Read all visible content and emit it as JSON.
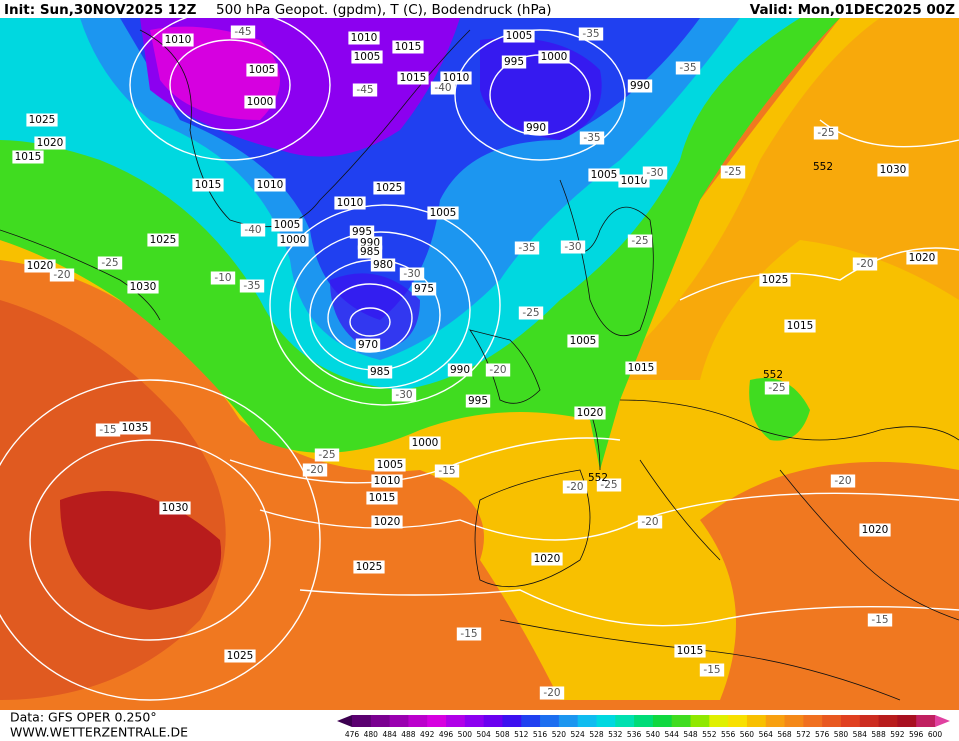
{
  "header": {
    "init": "Init: Sun,30NOV2025 12Z",
    "title": "500 hPa Geopot. (gpdm), T (C), Bodendruck (hPa)",
    "valid": "Valid: Mon,01DEC2025 00Z"
  },
  "footer": {
    "source": "Data: GFS OPER 0.250°",
    "site": "WWW.WETTERZENTRALE.DE"
  },
  "colorbar": {
    "labels": [
      476,
      480,
      484,
      488,
      492,
      496,
      500,
      504,
      508,
      512,
      516,
      520,
      524,
      528,
      532,
      536,
      540,
      544,
      548,
      552,
      556,
      560,
      564,
      568,
      572,
      576,
      580,
      584,
      588,
      592,
      596,
      600
    ],
    "colors": [
      "#3c0050",
      "#5a0070",
      "#7a0090",
      "#9a00b0",
      "#bb00cc",
      "#d600e0",
      "#b000e8",
      "#8c00f0",
      "#6a00f0",
      "#3c10f0",
      "#2040f0",
      "#1c6ef0",
      "#1c96f0",
      "#10bcf0",
      "#00d8e0",
      "#00e0b0",
      "#00dc78",
      "#10d840",
      "#40dc20",
      "#90e800",
      "#e0f000",
      "#f8e000",
      "#f8c000",
      "#f8a010",
      "#f48818",
      "#f07020",
      "#e85820",
      "#e04020",
      "#cc2c20",
      "#b81c1c",
      "#a81020",
      "#c02060",
      "#e040a0"
    ]
  },
  "map": {
    "pressure_labels": [
      "1010",
      "1005",
      "1000",
      "1025",
      "1020",
      "1015",
      "1015",
      "1010",
      "1005",
      "1000",
      "1025",
      "1020",
      "1030",
      "995",
      "990",
      "985",
      "980",
      "975",
      "970",
      "985",
      "990",
      "995",
      "1000",
      "1005",
      "1010",
      "1015",
      "1020",
      "1025",
      "1030",
      "1035",
      "1025",
      "1020",
      "1015",
      "1020",
      "1015",
      "1025",
      "1020",
      "1030",
      "1015",
      "1005",
      "1020",
      "1010",
      "1005",
      "990",
      "990",
      "995",
      "1000",
      "1005",
      "1010",
      "1005",
      "1015",
      "1015",
      "1010",
      "1005",
      "1010",
      "1025"
    ],
    "temperature_labels": [
      "-45",
      "-45",
      "-40",
      "-35",
      "-35",
      "-35",
      "-30",
      "-25",
      "-25",
      "-40",
      "-35",
      "-30",
      "-25",
      "-35",
      "-30",
      "-25",
      "-10",
      "-25",
      "-20",
      "-20",
      "-30",
      "-25",
      "-20",
      "-15",
      "-15",
      "-20",
      "-25",
      "-20",
      "-25",
      "-20",
      "-20",
      "-15",
      "-20",
      "-15",
      "-15"
    ],
    "geopotential_labels": [
      "552",
      "552",
      "552"
    ]
  }
}
